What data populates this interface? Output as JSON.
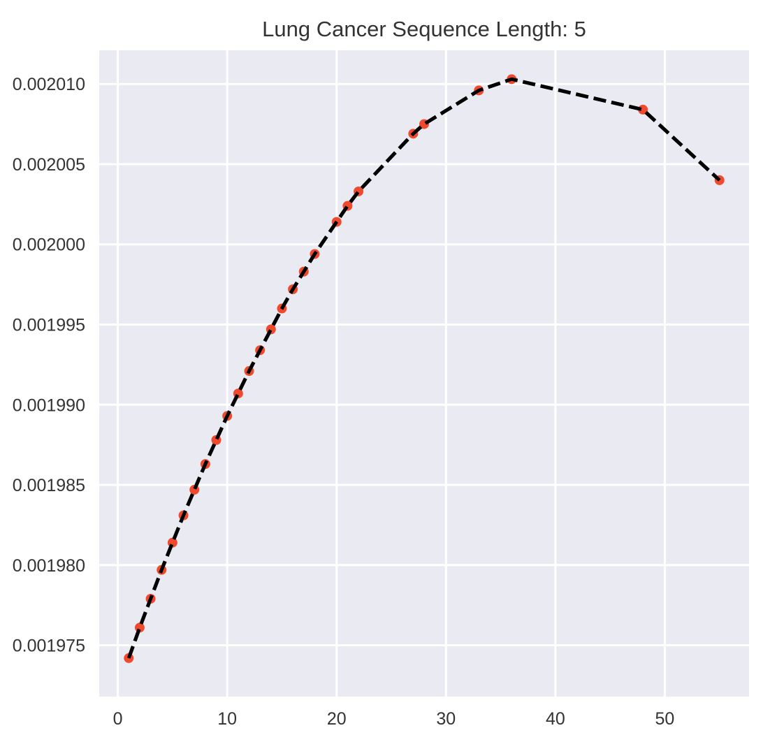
{
  "chart_data": {
    "type": "line",
    "title": "Lung Cancer Sequence Length: 5",
    "xlabel": "",
    "ylabel": "",
    "xlim": [
      -1.7,
      57.7
    ],
    "ylim": [
      0.0019718,
      0.0020121
    ],
    "xticks": [
      0,
      10,
      20,
      30,
      40,
      50
    ],
    "xtick_labels": [
      "0",
      "10",
      "20",
      "30",
      "40",
      "50"
    ],
    "yticks": [
      0.001975,
      0.00198,
      0.001985,
      0.00199,
      0.001995,
      0.002,
      0.002005,
      0.00201
    ],
    "ytick_labels": [
      "0.001975",
      "0.001980",
      "0.001985",
      "0.001990",
      "0.001995",
      "0.002000",
      "0.002005",
      "0.002010"
    ],
    "grid": true,
    "background": "#eaeaf2",
    "series": [
      {
        "line_color": "#000000",
        "line_style": "dashed",
        "marker_color": "#f04a2e",
        "points": [
          [
            1,
            0.0019742
          ],
          [
            2,
            0.0019761
          ],
          [
            3,
            0.0019779
          ],
          [
            4,
            0.0019797
          ],
          [
            5,
            0.0019814
          ],
          [
            6,
            0.0019831
          ],
          [
            7,
            0.0019847
          ],
          [
            8,
            0.0019863
          ],
          [
            9,
            0.0019878
          ],
          [
            10,
            0.0019893
          ],
          [
            11,
            0.0019907
          ],
          [
            12,
            0.0019921
          ],
          [
            13,
            0.0019934
          ],
          [
            14,
            0.0019947
          ],
          [
            15,
            0.001996
          ],
          [
            16,
            0.0019972
          ],
          [
            17,
            0.0019983
          ],
          [
            18,
            0.0019994
          ],
          [
            20,
            0.0020014
          ],
          [
            21,
            0.0020024
          ],
          [
            22,
            0.0020033
          ],
          [
            27,
            0.0020069
          ],
          [
            28,
            0.0020075
          ],
          [
            33,
            0.0020096
          ],
          [
            36,
            0.0020103
          ],
          [
            48,
            0.0020084
          ],
          [
            55,
            0.002004
          ]
        ]
      }
    ]
  }
}
